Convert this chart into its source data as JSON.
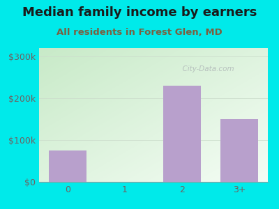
{
  "title": "Median family income by earners",
  "subtitle": "All residents in Forest Glen, MD",
  "categories": [
    "0",
    "1",
    "2",
    "3+"
  ],
  "values": [
    75000,
    0,
    230000,
    150000
  ],
  "bar_color": "#b8a0cc",
  "background_color": "#00eaea",
  "yticks": [
    0,
    100000,
    200000,
    300000
  ],
  "ytick_labels": [
    "$0",
    "$100k",
    "$200k",
    "$300k"
  ],
  "ylim": [
    0,
    320000
  ],
  "title_color": "#1a1a1a",
  "subtitle_color": "#7a6040",
  "tick_color": "#706060",
  "watermark": "City-Data.com",
  "title_fontsize": 13,
  "subtitle_fontsize": 9.5,
  "bar_width": 0.65,
  "plot_grad_left": "#c8eac8",
  "plot_grad_right": "#f0f8f0"
}
